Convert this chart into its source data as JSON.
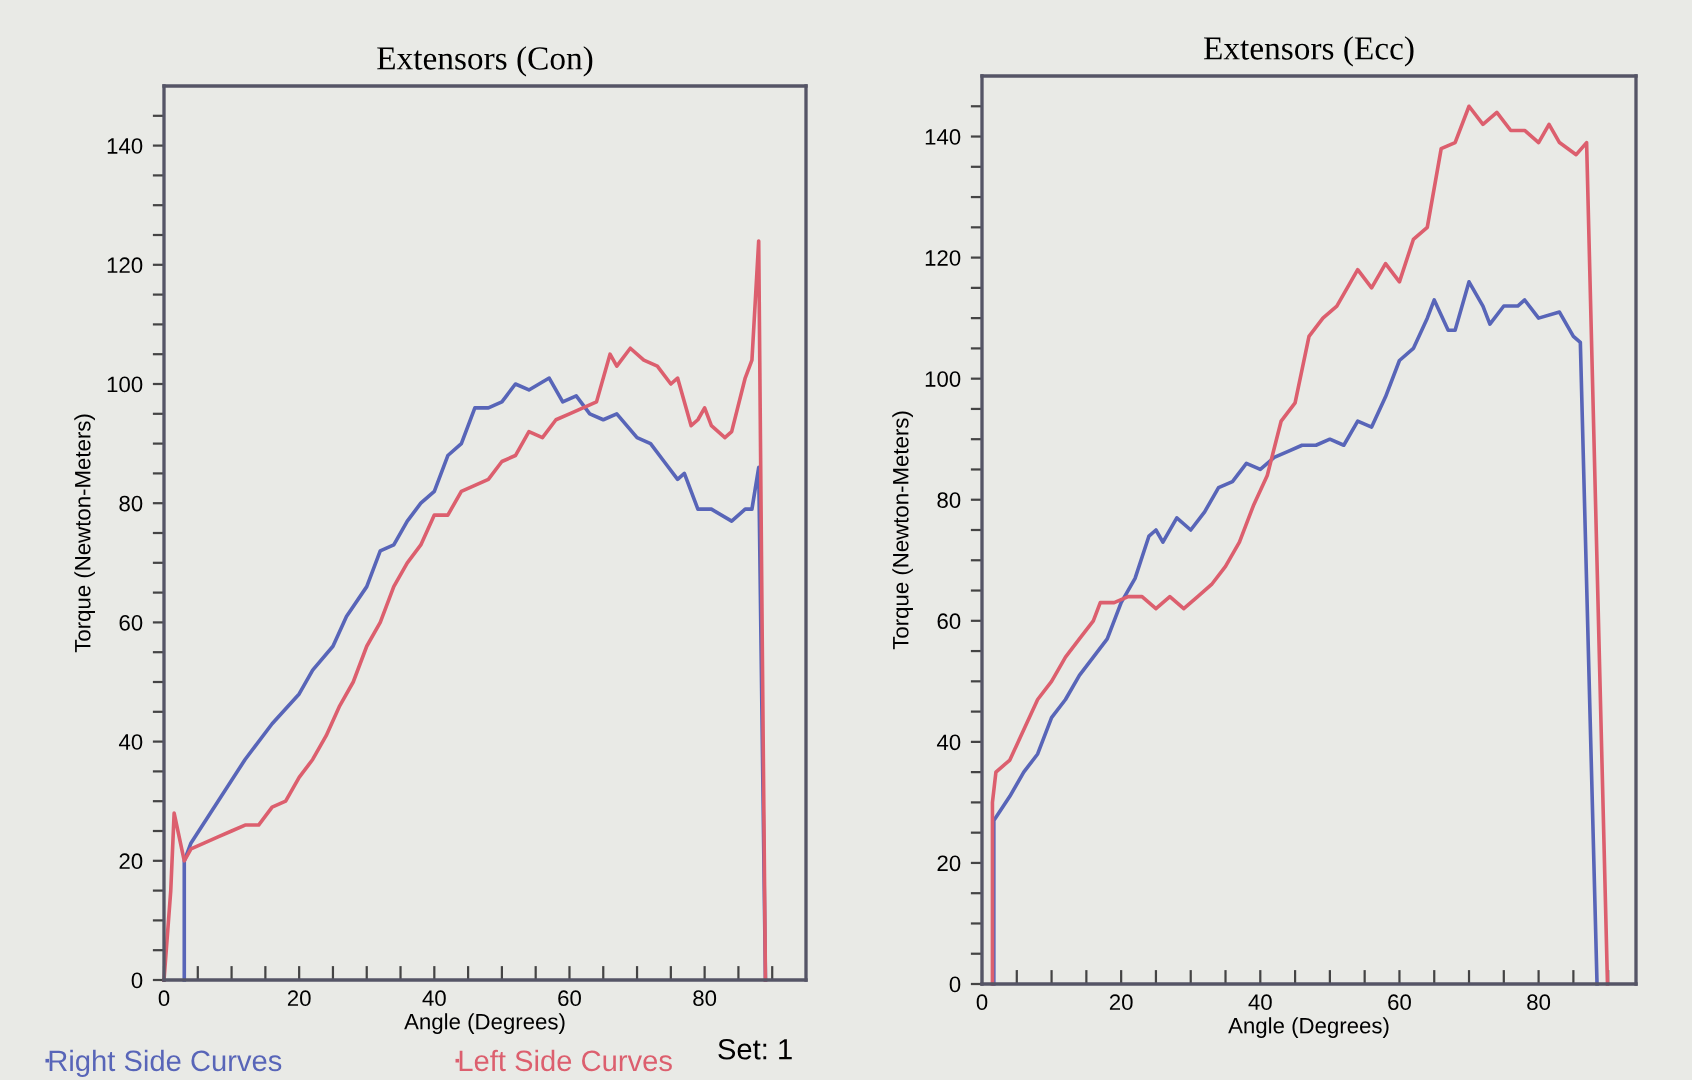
{
  "chart_data": [
    {
      "type": "line",
      "title": "Extensors (Con)",
      "xlabel": "Angle (Degrees)",
      "ylabel": "Torque (Newton-Meters)",
      "xlim": [
        0,
        95
      ],
      "ylim": [
        0,
        150
      ],
      "xticks": [
        0,
        {
          "value": 5,
          "label": null
        },
        {
          "value": 10,
          "label": null
        },
        {
          "value": 15,
          "label": null
        },
        20,
        {
          "value": 25,
          "label": null
        },
        {
          "value": 30,
          "label": null
        },
        {
          "value": 35,
          "label": null
        },
        40,
        {
          "value": 45,
          "label": null
        },
        {
          "value": 50,
          "label": null
        },
        {
          "value": 55,
          "label": null
        },
        60,
        {
          "value": 65,
          "label": null
        },
        {
          "value": 70,
          "label": null
        },
        {
          "value": 75,
          "label": null
        },
        80,
        {
          "value": 85,
          "label": null
        },
        {
          "value": 90,
          "label": null
        }
      ],
      "yticks": [
        0,
        {
          "value": 5,
          "label": null
        },
        {
          "value": 10,
          "label": null
        },
        {
          "value": 15,
          "label": null
        },
        20,
        {
          "value": 25,
          "label": null
        },
        {
          "value": 30,
          "label": null
        },
        {
          "value": 35,
          "label": null
        },
        40,
        {
          "value": 45,
          "label": null
        },
        {
          "value": 50,
          "label": null
        },
        {
          "value": 55,
          "label": null
        },
        60,
        {
          "value": 65,
          "label": null
        },
        {
          "value": 70,
          "label": null
        },
        {
          "value": 75,
          "label": null
        },
        80,
        {
          "value": 85,
          "label": null
        },
        {
          "value": 90,
          "label": null
        },
        {
          "value": 95,
          "label": null
        },
        100,
        {
          "value": 105,
          "label": null
        },
        {
          "value": 110,
          "label": null
        },
        {
          "value": 115,
          "label": null
        },
        120,
        {
          "value": 125,
          "label": null
        },
        {
          "value": 130,
          "label": null
        },
        {
          "value": 135,
          "label": null
        },
        140,
        {
          "value": 145,
          "label": null
        }
      ],
      "legend": "bottom",
      "annotations": [
        "Set: 1"
      ],
      "series": [
        {
          "name": "Right Side Curves",
          "color": "#5865b8",
          "x": [
            3,
            3,
            4,
            8,
            12,
            16,
            20,
            22,
            25,
            27,
            30,
            32,
            34,
            36,
            38,
            40,
            42,
            44,
            46,
            48,
            50,
            52,
            54,
            57,
            59,
            61,
            63,
            65,
            67,
            70,
            72,
            74,
            76,
            77,
            79,
            81,
            84,
            86,
            87,
            88,
            89
          ],
          "values": [
            0,
            20,
            23,
            30,
            37,
            43,
            48,
            52,
            56,
            61,
            66,
            72,
            73,
            77,
            80,
            82,
            88,
            90,
            96,
            96,
            97,
            100,
            99,
            101,
            97,
            98,
            95,
            94,
            95,
            91,
            90,
            87,
            84,
            85,
            79,
            79,
            77,
            79,
            79,
            86,
            0
          ]
        },
        {
          "name": "Left Side Curves",
          "color": "#dc5f6e",
          "x": [
            0,
            1,
            1.5,
            3,
            4,
            6,
            8,
            10,
            12,
            14,
            16,
            18,
            20,
            22,
            24,
            26,
            28,
            30,
            32,
            34,
            36,
            38,
            40,
            42,
            44,
            46,
            48,
            50,
            52,
            54,
            56,
            58,
            60,
            62,
            64,
            66,
            67,
            69,
            71,
            73,
            75,
            76,
            78,
            79,
            80,
            81,
            83,
            84,
            86,
            87,
            88,
            88.5,
            89
          ],
          "values": [
            0,
            15,
            28,
            20,
            22,
            23,
            24,
            25,
            26,
            26,
            29,
            30,
            34,
            37,
            41,
            46,
            50,
            56,
            60,
            66,
            70,
            73,
            78,
            78,
            82,
            83,
            84,
            87,
            88,
            92,
            91,
            94,
            95,
            96,
            97,
            105,
            103,
            106,
            104,
            103,
            100,
            101,
            93,
            94,
            96,
            93,
            91,
            92,
            101,
            104,
            124,
            60,
            0
          ]
        }
      ]
    },
    {
      "type": "line",
      "title": "Extensors (Ecc)",
      "xlabel": "Angle (Degrees)",
      "ylabel": "Torque (Newton-Meters)",
      "xlim": [
        0,
        94
      ],
      "ylim": [
        0,
        150
      ],
      "xticks": [
        0,
        {
          "value": 5,
          "label": null
        },
        {
          "value": 10,
          "label": null
        },
        {
          "value": 15,
          "label": null
        },
        20,
        {
          "value": 25,
          "label": null
        },
        {
          "value": 30,
          "label": null
        },
        {
          "value": 35,
          "label": null
        },
        40,
        {
          "value": 45,
          "label": null
        },
        {
          "value": 50,
          "label": null
        },
        {
          "value": 55,
          "label": null
        },
        60,
        {
          "value": 65,
          "label": null
        },
        {
          "value": 70,
          "label": null
        },
        {
          "value": 75,
          "label": null
        },
        80,
        {
          "value": 85,
          "label": null
        },
        {
          "value": 90,
          "label": null
        }
      ],
      "yticks": [
        0,
        {
          "value": 5,
          "label": null
        },
        {
          "value": 10,
          "label": null
        },
        {
          "value": 15,
          "label": null
        },
        20,
        {
          "value": 25,
          "label": null
        },
        {
          "value": 30,
          "label": null
        },
        {
          "value": 35,
          "label": null
        },
        40,
        {
          "value": 45,
          "label": null
        },
        {
          "value": 50,
          "label": null
        },
        {
          "value": 55,
          "label": null
        },
        60,
        {
          "value": 65,
          "label": null
        },
        {
          "value": 70,
          "label": null
        },
        {
          "value": 75,
          "label": null
        },
        80,
        {
          "value": 85,
          "label": null
        },
        {
          "value": 90,
          "label": null
        },
        {
          "value": 95,
          "label": null
        },
        100,
        {
          "value": 105,
          "label": null
        },
        {
          "value": 110,
          "label": null
        },
        {
          "value": 115,
          "label": null
        },
        120,
        {
          "value": 125,
          "label": null
        },
        {
          "value": 130,
          "label": null
        },
        {
          "value": 135,
          "label": null
        },
        140,
        {
          "value": 145,
          "label": null
        }
      ],
      "series": [
        {
          "color": "#5865b8",
          "x": [
            1.7,
            1.7,
            4,
            6,
            8,
            10,
            12,
            14,
            16,
            18,
            20,
            22,
            24,
            25,
            26,
            28,
            30,
            32,
            34,
            36,
            38,
            40,
            42,
            44,
            46,
            48,
            50,
            52,
            54,
            56,
            58,
            60,
            62,
            64,
            65,
            67,
            68,
            70,
            72,
            73,
            75,
            77,
            78,
            80,
            83,
            85,
            86,
            88.4
          ],
          "values": [
            0,
            27,
            31,
            35,
            38,
            44,
            47,
            51,
            54,
            57,
            63,
            67,
            74,
            75,
            73,
            77,
            75,
            78,
            82,
            83,
            86,
            85,
            87,
            88,
            89,
            89,
            90,
            89,
            93,
            92,
            97,
            103,
            105,
            110,
            113,
            108,
            108,
            116,
            112,
            109,
            112,
            112,
            113,
            110,
            111,
            107,
            106,
            0
          ]
        },
        {
          "color": "#dc5f6e",
          "x": [
            1.5,
            1.5,
            2,
            4,
            6,
            8,
            10,
            12,
            14,
            16,
            17,
            19,
            21,
            23,
            25,
            27,
            29,
            31,
            33,
            35,
            37,
            39,
            41,
            43,
            45,
            47,
            49,
            51,
            54,
            56,
            58,
            60,
            62,
            64,
            66,
            68,
            70,
            72,
            74,
            76,
            78,
            80,
            81.5,
            83,
            85.4,
            86.9,
            89.9
          ],
          "values": [
            0,
            30,
            35,
            37,
            42,
            47,
            50,
            54,
            57,
            60,
            63,
            63,
            64,
            64,
            62,
            64,
            62,
            64,
            66,
            69,
            73,
            79,
            84,
            93,
            96,
            107,
            110,
            112,
            118,
            115,
            119,
            116,
            123,
            125,
            138,
            139,
            145,
            142,
            144,
            141,
            141,
            139,
            142,
            139,
            137,
            139,
            0
          ]
        }
      ]
    }
  ]
}
